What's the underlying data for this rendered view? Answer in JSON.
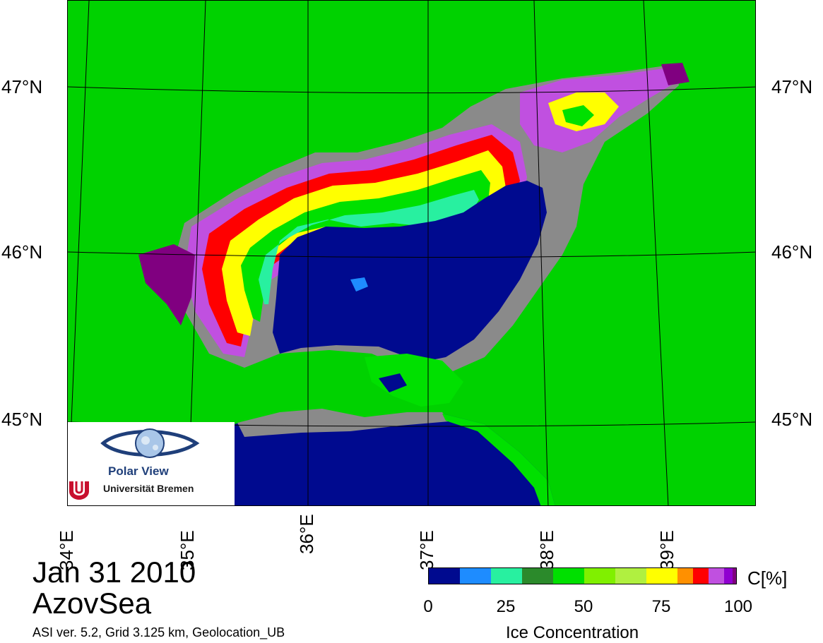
{
  "map": {
    "lat_labels": [
      "47°N",
      "46°N",
      "45°N"
    ],
    "lon_labels": [
      "34°E",
      "35°E",
      "36°E",
      "37°E",
      "38°E",
      "39°E"
    ]
  },
  "colors": {
    "land": "#00d200",
    "coast_gray": "#8a8a8a",
    "open_water": "#000a8f",
    "concentration_scale": [
      "#000a8f",
      "#1e8cff",
      "#28f0a0",
      "#2b8a2b",
      "#00e000",
      "#80f000",
      "#b0f040",
      "#ffff00",
      "#ff9000",
      "#ff0000",
      "#c050e0",
      "#9000d0",
      "#800080"
    ]
  },
  "logo": {
    "name": "Polar View",
    "institution": "Universität Bremen",
    "icon": "eye-globe-icon"
  },
  "caption": {
    "date": "Jan 31 2010",
    "region": "AzovSea",
    "info": "ASI ver. 5.2,  Grid 3.125 km, Geolocation_UB"
  },
  "colorbar": {
    "unit": "C[%]",
    "title": "Ice Concentration",
    "ticks": [
      "0",
      "25",
      "50",
      "75",
      "100"
    ],
    "range": [
      0,
      100
    ]
  }
}
